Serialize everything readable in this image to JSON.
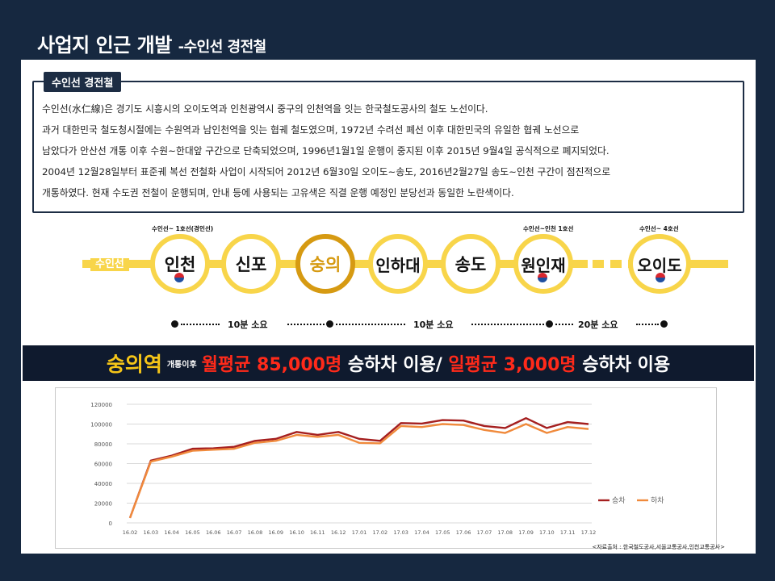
{
  "header": {
    "title": "사업지 인근 개발 ",
    "subtitle": "-수인선 경전철"
  },
  "info_box": {
    "tag": "수인선 경전철",
    "lines": [
      "수인선(水仁線)은 경기도 시흥시의 오이도역과 인천광역시 중구의 인천역을 잇는 한국철도공사의 철도 노선이다.",
      "과거 대한민국 철도청시절에는 수원역과 남인천역을 잇는 협궤 철도였으며, 1972년 수려선 폐선 이후 대한민국의 유일한 협궤 노선으로",
      "남았다가 안산선 개통 이후 수원~한대앞 구간으로 단축되었으며, 1996년1월1일 운행이 중지된 이후 2015년 9월4일 공식적으로 폐지되었다.",
      "2004년 12월28일부터 표준궤 복선 전철화 사업이 시작되어 2012년 6월30일 오이도~송도, 2016년2월27일 송도~인천 구간이 점진적으로",
      "개통하였다. 현재 수도권 전철이 운행되며, 안내 등에 사용되는 고유색은 직결 운행 예정인 분당선과 동일한 노란색이다."
    ]
  },
  "line_map": {
    "line_label": "수인선",
    "stations": [
      "인천",
      "신포",
      "숭의",
      "인하대",
      "송도",
      "원인재",
      "오이도"
    ],
    "transfer_notes": [
      "수인선~ 1호선(경인선)",
      "수인선~인천 1호선",
      "수인선~ 4호선"
    ],
    "durations": [
      "10분 소요",
      "10분 소요",
      "20분 소요"
    ],
    "colors": {
      "line": "#f8d54a",
      "highlight": "#d69a12"
    }
  },
  "banner": {
    "station": "숭의역",
    "small": "개통이후",
    "monthly_label": "월평균 85,000명",
    "text1": " 승하차 이용/ ",
    "daily_label": "일평균 3,000명",
    "text2": " 승하차 이용"
  },
  "chart_data": {
    "type": "line",
    "x": [
      "16.02",
      "16.03",
      "16.04",
      "16.05",
      "16.06",
      "16.07",
      "16.08",
      "16.09",
      "16.10",
      "16.11",
      "16.12",
      "17.01",
      "17.02",
      "17.03",
      "17.04",
      "17.05",
      "17.06",
      "17.07",
      "17.08",
      "17.09",
      "17.10",
      "17.11",
      "17.12"
    ],
    "ylim": [
      0,
      120000
    ],
    "yticks": [
      0,
      20000,
      40000,
      60000,
      80000,
      100000,
      120000
    ],
    "grid": true,
    "legend": "right",
    "series": [
      {
        "name": "승차",
        "color": "#a51f1f",
        "values": [
          5000,
          63000,
          68000,
          75000,
          75500,
          77000,
          83000,
          85000,
          92000,
          89000,
          92000,
          85000,
          83000,
          101000,
          100500,
          104000,
          103500,
          98000,
          96000,
          106000,
          96000,
          102000,
          100000
        ]
      },
      {
        "name": "하차",
        "color": "#f08a3c",
        "values": [
          5000,
          62000,
          67000,
          73000,
          74000,
          75000,
          81000,
          83000,
          89000,
          87000,
          89000,
          81000,
          80500,
          98000,
          97000,
          100000,
          99000,
          94000,
          91000,
          100000,
          91000,
          97000,
          95000
        ]
      }
    ]
  },
  "source": "<자료출처 : 한국철도공사,서울교통공사,인천교통공사>"
}
